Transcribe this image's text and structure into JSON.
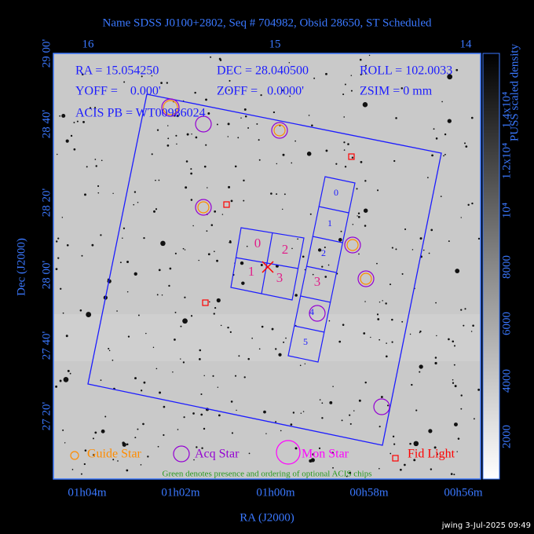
{
  "title": "Name SDSS J0100+2802, Seq # 704982, Obsid 28650, ST Scheduled",
  "top_axis": {
    "ticks": [
      "16",
      "15",
      "14"
    ]
  },
  "left_axis": {
    "label": "Dec (J2000)",
    "ticks": [
      "29 00'",
      "28 40'",
      "28 20'",
      "28 00'",
      "27 40'",
      "27 20'"
    ]
  },
  "bottom_axis": {
    "label": "RA (J2000)",
    "ticks": [
      "01h04m",
      "01h02m",
      "01h00m",
      "00h58m",
      "00h56m"
    ]
  },
  "info": [
    "RA = 15.054250",
    "DEC = 28.040500",
    "ROLL = 102.0033",
    "YOFF =    0.000'",
    "ZOFF =   0.0000'",
    "ZSIM = 0 mm",
    "ACIS PB = WT00986024"
  ],
  "chips": {
    "acis_i": [
      "0",
      "2",
      "1",
      "3"
    ],
    "acis_s": [
      "0",
      "1",
      "2",
      "3",
      "4",
      "5"
    ]
  },
  "legend": [
    "Guide Star",
    "Acq Star",
    "Mon Star",
    "Fid Light"
  ],
  "note": "Green denotes presence and ordering of optional ACIS chips",
  "colorbar": {
    "label": "PUSS scaled density",
    "ticks": [
      "2000",
      "4000",
      "6000",
      "8000",
      "10⁴",
      "1.2x10⁴",
      "1.4x10⁴"
    ]
  },
  "footer": "jwing  3-Jul-2025 09:49"
}
